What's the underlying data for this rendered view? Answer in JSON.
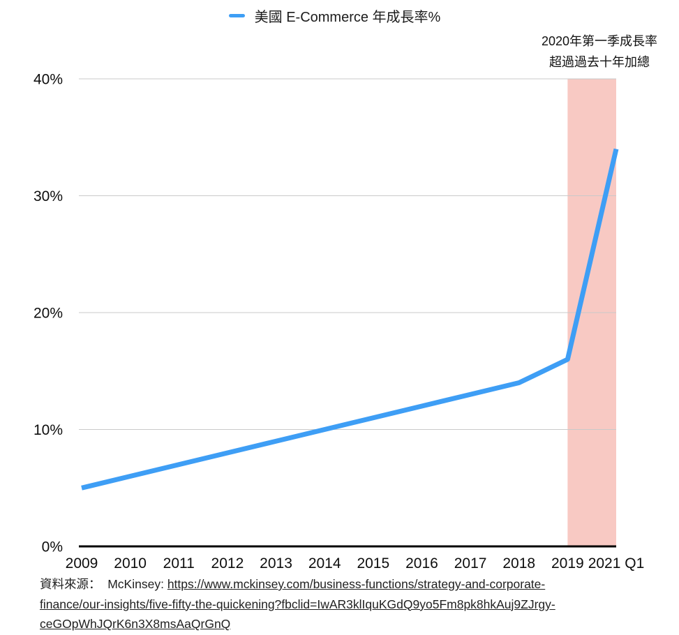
{
  "legend": {
    "label": "美國 E-Commerce 年成長率%"
  },
  "annotation": {
    "line1": "2020年第一季成長率",
    "line2": "超過過去十年加總"
  },
  "colors": {
    "line": "#3e9ef5",
    "band": "#f8c9c3"
  },
  "chart_data": {
    "type": "line",
    "title": "美國 E-Commerce 年成長率%",
    "categories": [
      "2009",
      "2010",
      "2011",
      "2012",
      "2013",
      "2014",
      "2015",
      "2016",
      "2017",
      "2018",
      "2019",
      "2021 Q1"
    ],
    "series": [
      {
        "name": "美國 E-Commerce 年成長率%",
        "values": [
          5,
          6,
          7,
          8,
          9,
          10,
          11,
          12,
          13,
          14,
          16,
          34
        ]
      }
    ],
    "xlabel": "",
    "ylabel": "",
    "y_ticks": [
      "0%",
      "10%",
      "20%",
      "30%",
      "40%"
    ],
    "y_tick_values": [
      0,
      10,
      20,
      30,
      40
    ],
    "ylim": [
      0,
      40
    ],
    "grid": true,
    "legend_position": "top-center",
    "line_color": "#3e9ef5",
    "highlight_band": {
      "from_category": "2019",
      "to_category": "2021 Q1",
      "color": "#f8c9c3",
      "meaning": "2020年第一季成長率超過過去十年加總"
    }
  },
  "source": {
    "prefix": "資料來源：",
    "attribution": "McKinsey:",
    "url_lines": [
      "https://www.mckinsey.com/business-functions/strategy-and-corporate-",
      "finance/our-insights/five-fifty-the-quickening?fbclid=IwAR3klIquKGdQ9yo5Fm8pk8hkAuj9ZJrgy-",
      "ceGOpWhJQrK6n3X8msAaQrGnQ"
    ]
  }
}
